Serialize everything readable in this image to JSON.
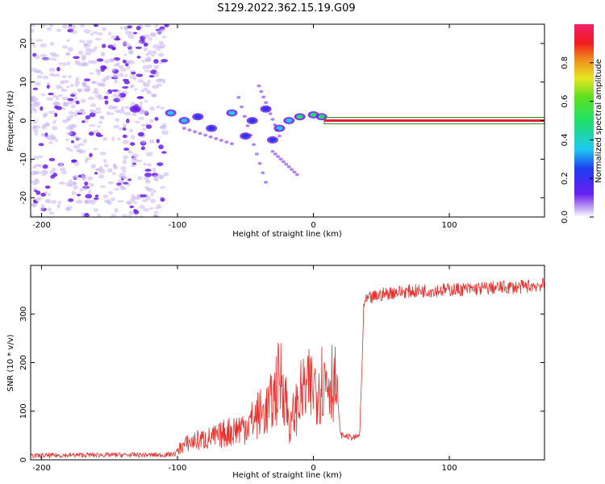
{
  "figure_title": "S129.2022.362.15.19.G09",
  "colors": {
    "snr_line": "#e8302c",
    "spectrum_line": "#c81e6e",
    "spectrum_band": "#2a8a2a",
    "speckle_light": "#c8b4f0",
    "speckle_dark": "#6a1ef0",
    "axis": "#000000"
  },
  "colorbar": {
    "label": "Normalized spectral amplitude",
    "tick_labels": [
      "0.0",
      "0.2",
      "0.4",
      "0.6",
      "0.8"
    ],
    "ticks": [
      0.0,
      0.2,
      0.4,
      0.6,
      0.8
    ],
    "range": [
      0,
      1
    ],
    "colormap": "rainbow (violet-blue-cyan-green-yellow-orange-red-magenta)"
  },
  "chart_data": [
    {
      "type": "heatmap",
      "title": "",
      "xlabel": "Height of straight line (km)",
      "ylabel": "Frequency (Hz)",
      "xlim": [
        -208,
        170
      ],
      "ylim": [
        -25,
        25
      ],
      "xticks": [
        -200,
        -100,
        0,
        100
      ],
      "xtick_labels": [
        "-200",
        "-100",
        "0",
        "100"
      ],
      "yticks": [
        -20,
        -10,
        0,
        10,
        20
      ],
      "ytick_labels": [
        "-20",
        "-10",
        "0",
        "10",
        "20"
      ],
      "grid": false,
      "features": [
        {
          "name": "noise speckle",
          "x": [
            -208,
            -108
          ],
          "y": [
            -25,
            25
          ],
          "amplitude": "low (0.0-0.2)"
        },
        {
          "name": "blob",
          "x": -131,
          "y": 3,
          "amplitude": 0.2
        },
        {
          "name": "blob",
          "x": -105,
          "y": 2,
          "amplitude": 0.35
        },
        {
          "name": "blob",
          "x": -95,
          "y": 0,
          "amplitude": 0.35
        },
        {
          "name": "blob",
          "x": -85,
          "y": 1,
          "amplitude": 0.3
        },
        {
          "name": "blob",
          "x": -75,
          "y": -2,
          "amplitude": 0.3
        },
        {
          "name": "blob",
          "x": -60,
          "y": 2,
          "amplitude": 0.35
        },
        {
          "name": "blob",
          "x": -50,
          "y": -4,
          "amplitude": 0.3
        },
        {
          "name": "blob",
          "x": -45,
          "y": 0,
          "amplitude": 0.3
        },
        {
          "name": "blob",
          "x": -35,
          "y": 3,
          "amplitude": 0.3
        },
        {
          "name": "blob",
          "x": -30,
          "y": -5,
          "amplitude": 0.25
        },
        {
          "name": "blob",
          "x": -25,
          "y": -2,
          "amplitude": 0.4
        },
        {
          "name": "blob",
          "x": -18,
          "y": 0,
          "amplitude": 0.45
        },
        {
          "name": "blob",
          "x": -10,
          "y": 1,
          "amplitude": 0.5
        },
        {
          "name": "blob",
          "x": 0,
          "y": 1.5,
          "amplitude": 0.55
        },
        {
          "name": "blob",
          "x": 6,
          "y": 1,
          "amplitude": 0.6
        },
        {
          "name": "steady tone",
          "x": [
            8,
            170
          ],
          "y": 0,
          "amplitude": 0.95
        }
      ]
    },
    {
      "type": "line",
      "title": "",
      "xlabel": "Height of straight line (km)",
      "ylabel": "SNR (10 * v/v)",
      "xlim": [
        -208,
        170
      ],
      "ylim": [
        0,
        400
      ],
      "xticks": [
        -200,
        -100,
        0,
        100
      ],
      "xtick_labels": [
        "-200",
        "-100",
        "0",
        "100"
      ],
      "yticks": [
        0,
        100,
        200,
        300
      ],
      "ytick_labels": [
        "0",
        "100",
        "200",
        "300"
      ],
      "grid": false,
      "series": [
        {
          "name": "",
          "x": [
            -208,
            -190,
            -170,
            -150,
            -130,
            -110,
            -102,
            -98,
            -92,
            -85,
            -80,
            -75,
            -70,
            -65,
            -60,
            -55,
            -50,
            -45,
            -40,
            -35,
            -30,
            -27,
            -24,
            -22,
            -20,
            -17,
            -15,
            -12,
            -10,
            -5,
            0,
            5,
            10,
            15,
            18,
            20,
            22,
            25,
            30,
            34,
            36,
            37,
            40,
            50,
            60,
            80,
            100,
            120,
            140,
            150,
            160,
            170
          ],
          "y": [
            8,
            9,
            10,
            10,
            10,
            10,
            12,
            25,
            35,
            40,
            42,
            45,
            48,
            55,
            60,
            65,
            70,
            80,
            95,
            100,
            120,
            150,
            170,
            160,
            120,
            60,
            90,
            110,
            130,
            145,
            150,
            160,
            165,
            170,
            120,
            50,
            50,
            48,
            45,
            50,
            210,
            320,
            330,
            340,
            345,
            348,
            350,
            352,
            355,
            355,
            358,
            360
          ]
        }
      ]
    }
  ]
}
